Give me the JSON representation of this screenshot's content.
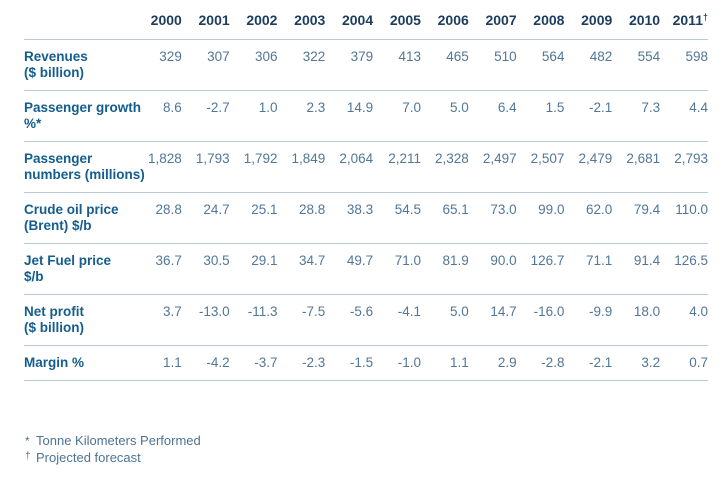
{
  "colors": {
    "background": "#ffffff",
    "year_header_text": "#1c3d5e",
    "row_label_text": "#135d8f",
    "value_text": "#517798",
    "divider": "#b5cbdb",
    "footnote_text": "#4d7494"
  },
  "table": {
    "columns": [
      {
        "label": "2000",
        "sup": ""
      },
      {
        "label": "2001",
        "sup": ""
      },
      {
        "label": "2002",
        "sup": ""
      },
      {
        "label": "2003",
        "sup": ""
      },
      {
        "label": "2004",
        "sup": ""
      },
      {
        "label": "2005",
        "sup": ""
      },
      {
        "label": "2006",
        "sup": ""
      },
      {
        "label": "2007",
        "sup": ""
      },
      {
        "label": "2008",
        "sup": ""
      },
      {
        "label": "2009",
        "sup": ""
      },
      {
        "label": "2010",
        "sup": ""
      },
      {
        "label": "2011",
        "sup": "†"
      }
    ],
    "rows": [
      {
        "name": "revenues",
        "label_lines": [
          "Revenues",
          "($ billion)"
        ],
        "values": [
          "329",
          "307",
          "306",
          "322",
          "379",
          "413",
          "465",
          "510",
          "564",
          "482",
          "554",
          "598"
        ]
      },
      {
        "name": "passenger-growth",
        "label_lines": [
          "Passenger growth",
          "%*"
        ],
        "values": [
          "8.6",
          "-2.7",
          "1.0",
          "2.3",
          "14.9",
          "7.0",
          "5.0",
          "6.4",
          "1.5",
          "-2.1",
          "7.3",
          "4.4"
        ]
      },
      {
        "name": "passenger-numbers",
        "label_lines": [
          "Passenger",
          "numbers (millions)"
        ],
        "values": [
          "1,828",
          "1,793",
          "1,792",
          "1,849",
          "2,064",
          "2,211",
          "2,328",
          "2,497",
          "2,507",
          "2,479",
          "2,681",
          "2,793"
        ]
      },
      {
        "name": "crude-oil-price",
        "label_lines": [
          "Crude oil price",
          "(Brent) $/b"
        ],
        "values": [
          "28.8",
          "24.7",
          "25.1",
          "28.8",
          "38.3",
          "54.5",
          "65.1",
          "73.0",
          "99.0",
          "62.0",
          "79.4",
          "110.0"
        ]
      },
      {
        "name": "jet-fuel-price",
        "label_lines": [
          "Jet Fuel price",
          "$/b"
        ],
        "values": [
          "36.7",
          "30.5",
          "29.1",
          "34.7",
          "49.7",
          "71.0",
          "81.9",
          "90.0",
          "126.7",
          "71.1",
          "91.4",
          "126.5"
        ]
      },
      {
        "name": "net-profit",
        "label_lines": [
          "Net profit",
          "($ billion)"
        ],
        "values": [
          "3.7",
          "-13.0",
          "-11.3",
          "-7.5",
          "-5.6",
          "-4.1",
          "5.0",
          "14.7",
          "-16.0",
          "-9.9",
          "18.0",
          "4.0"
        ]
      },
      {
        "name": "margin",
        "label_lines": [
          "Margin %"
        ],
        "values": [
          "1.1",
          "-4.2",
          "-3.7",
          "-2.3",
          "-1.5",
          "-1.0",
          "1.1",
          "2.9",
          "-2.8",
          "-2.1",
          "3.2",
          "0.7"
        ]
      }
    ]
  },
  "footnotes": [
    {
      "marker": "*",
      "text": "Tonne Kilometers Performed"
    },
    {
      "marker": "†",
      "text": "Projected forecast"
    }
  ],
  "chart_data": {
    "type": "table",
    "categories": [
      "2000",
      "2001",
      "2002",
      "2003",
      "2004",
      "2005",
      "2006",
      "2007",
      "2008",
      "2009",
      "2010",
      "2011†"
    ],
    "series": [
      {
        "name": "Revenues ($ billion)",
        "values": [
          329,
          307,
          306,
          322,
          379,
          413,
          465,
          510,
          564,
          482,
          554,
          598
        ]
      },
      {
        "name": "Passenger growth %*",
        "values": [
          8.6,
          -2.7,
          1.0,
          2.3,
          14.9,
          7.0,
          5.0,
          6.4,
          1.5,
          -2.1,
          7.3,
          4.4
        ]
      },
      {
        "name": "Passenger numbers (millions)",
        "values": [
          1828,
          1793,
          1792,
          1849,
          2064,
          2211,
          2328,
          2497,
          2507,
          2479,
          2681,
          2793
        ]
      },
      {
        "name": "Crude oil price (Brent) $/b",
        "values": [
          28.8,
          24.7,
          25.1,
          28.8,
          38.3,
          54.5,
          65.1,
          73.0,
          99.0,
          62.0,
          79.4,
          110.0
        ]
      },
      {
        "name": "Jet Fuel price $/b",
        "values": [
          36.7,
          30.5,
          29.1,
          34.7,
          49.7,
          71.0,
          81.9,
          90.0,
          126.7,
          71.1,
          91.4,
          126.5
        ]
      },
      {
        "name": "Net profit ($ billion)",
        "values": [
          3.7,
          -13.0,
          -11.3,
          -7.5,
          -5.6,
          -4.1,
          5.0,
          14.7,
          -16.0,
          -9.9,
          18.0,
          4.0
        ]
      },
      {
        "name": "Margin %",
        "values": [
          1.1,
          -4.2,
          -3.7,
          -2.3,
          -1.5,
          -1.0,
          1.1,
          2.9,
          -2.8,
          -2.1,
          3.2,
          0.7
        ]
      }
    ],
    "title": "",
    "footnotes": [
      "* Tonne Kilometers Performed",
      "† Projected forecast"
    ]
  }
}
